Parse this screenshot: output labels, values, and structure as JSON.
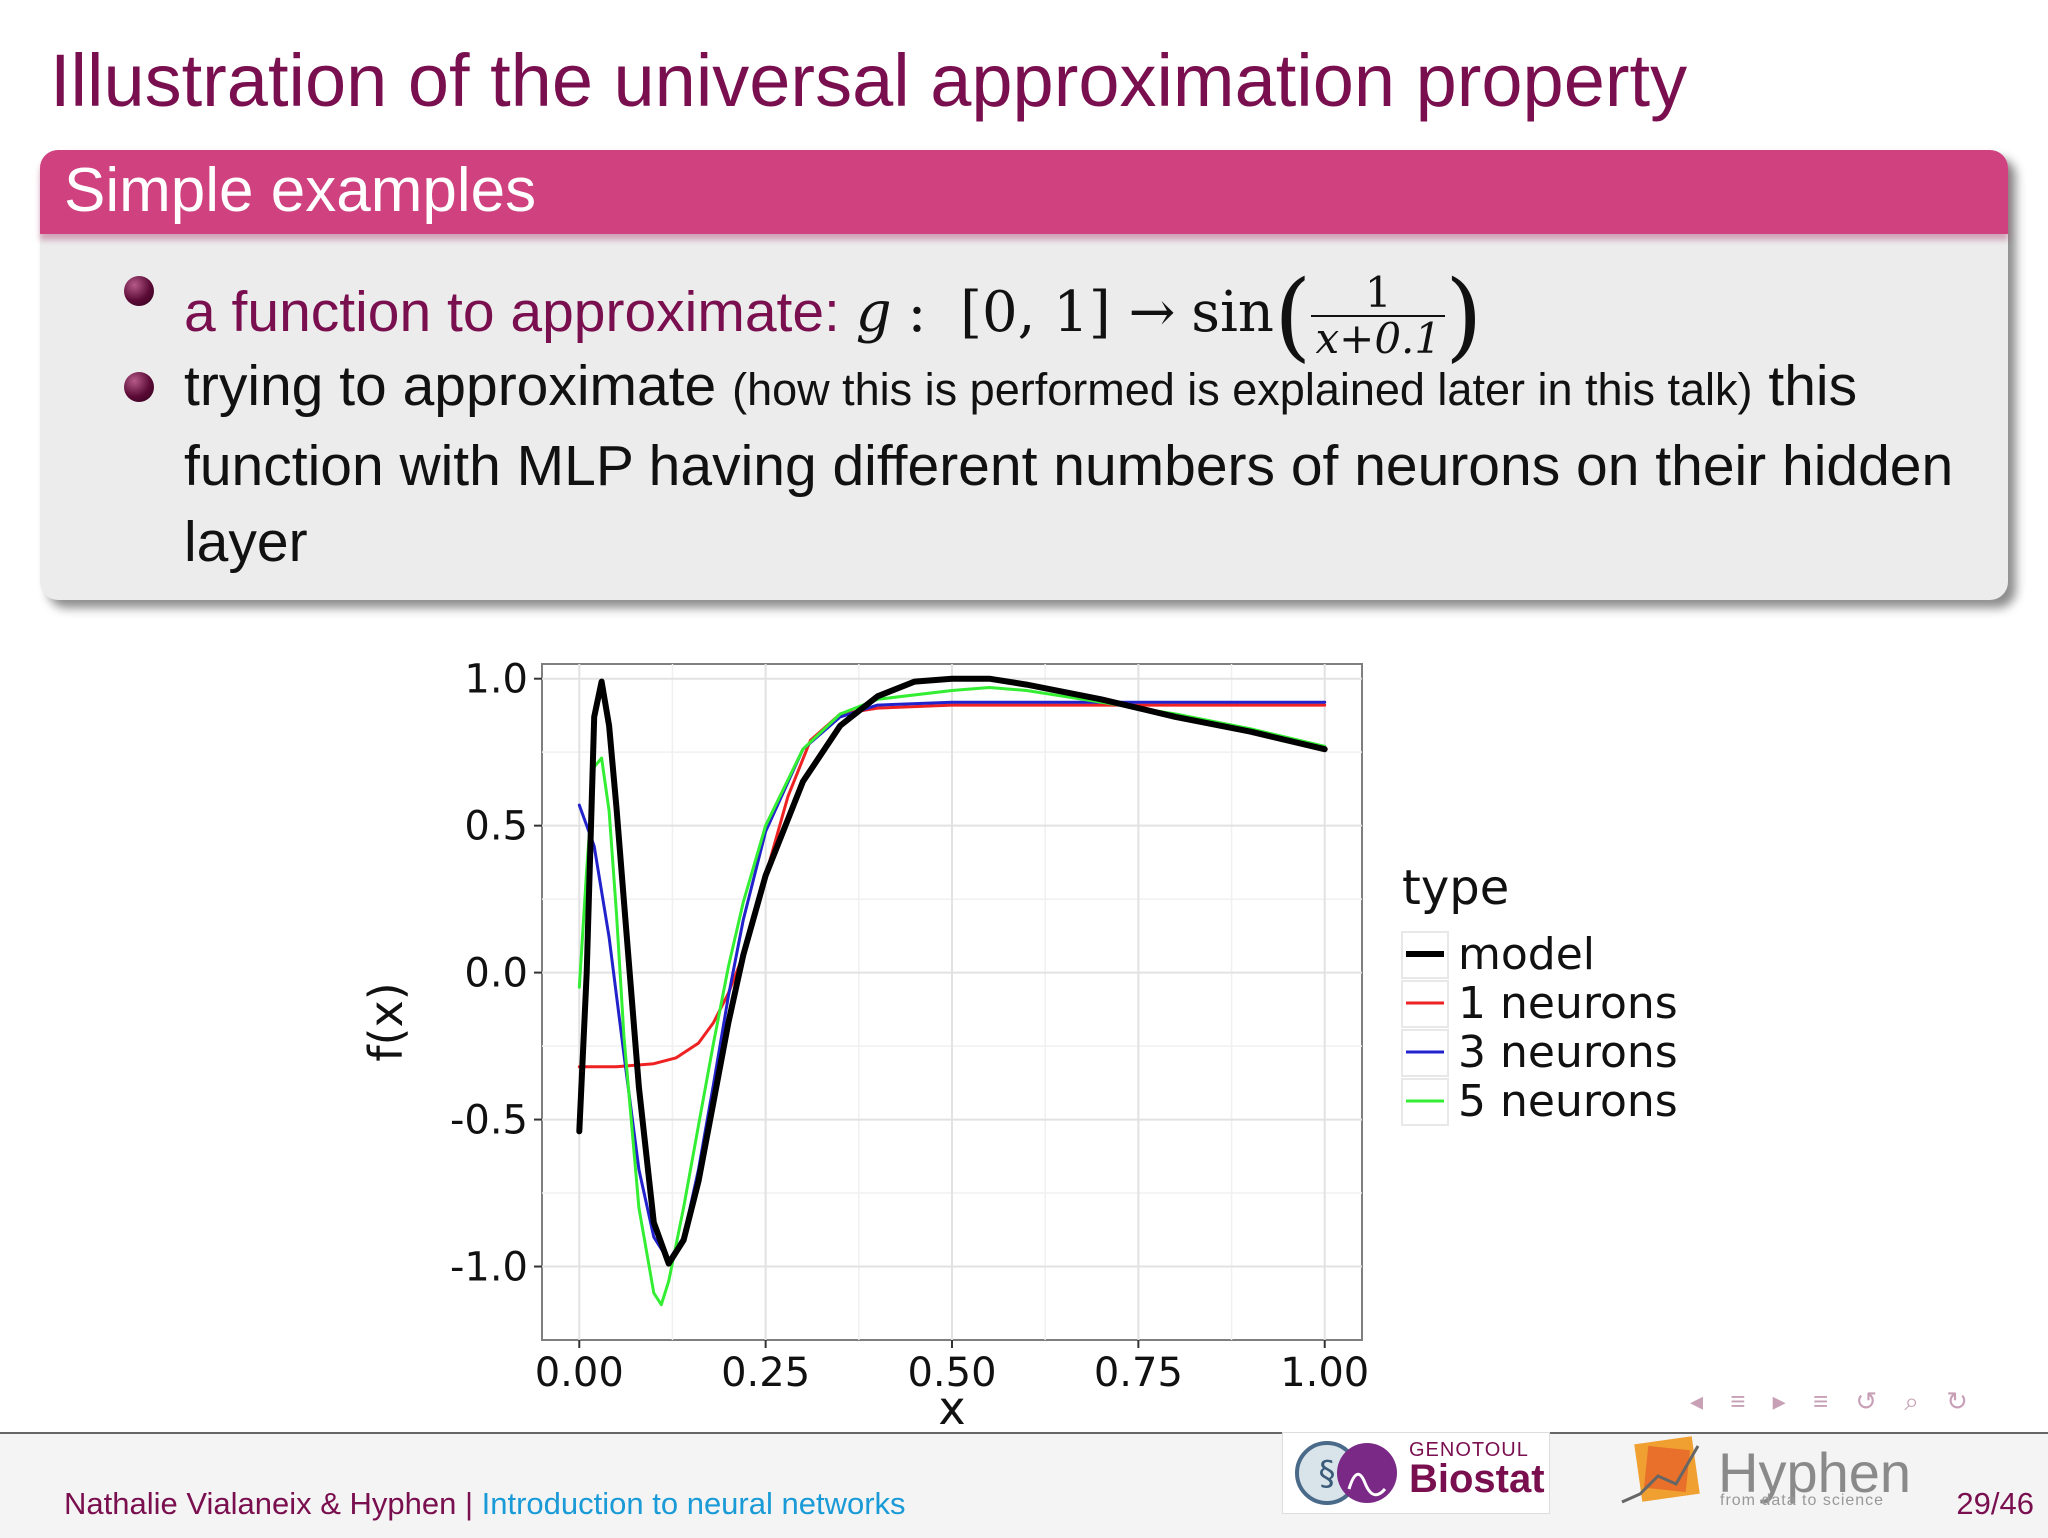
{
  "slide": {
    "title": "Illustration of the universal approximation property",
    "block_title": "Simple examples",
    "bullet1": {
      "label": "a function to approximate:",
      "g": "g",
      "colon": ":",
      "domain": "[0, 1] →",
      "sin": "sin",
      "frac_num": "1",
      "frac_den": "x+0.1",
      "paren_open": "(",
      "paren_close": ")"
    },
    "bullet2": {
      "part1": "trying to approximate",
      "small": "(how this is performed is explained later in this talk)",
      "part2": "this function with MLP having different numbers of neurons on their hidden layer"
    }
  },
  "chart_data": {
    "type": "line",
    "title": "",
    "xlabel": "x",
    "ylabel": "f(x)",
    "xlim": [
      -0.05,
      1.05
    ],
    "ylim": [
      -1.25,
      1.05
    ],
    "xticks": [
      "0.00",
      "0.25",
      "0.50",
      "0.75",
      "1.00"
    ],
    "xtick_values": [
      0,
      0.25,
      0.5,
      0.75,
      1.0
    ],
    "yticks": [
      "-1.0",
      "-0.5",
      "0.0",
      "0.5",
      "1.0"
    ],
    "ytick_values": [
      -1.0,
      -0.5,
      0.0,
      0.5,
      1.0
    ],
    "grid": true,
    "legend_title": "type",
    "legend_position": "right",
    "series": [
      {
        "name": "model",
        "color": "#000000",
        "x": [
          0.0,
          0.01,
          0.02,
          0.03,
          0.04,
          0.05,
          0.06,
          0.08,
          0.1,
          0.12,
          0.14,
          0.16,
          0.18,
          0.2,
          0.22,
          0.25,
          0.3,
          0.35,
          0.4,
          0.45,
          0.5,
          0.55,
          0.6,
          0.7,
          0.8,
          0.9,
          1.0
        ],
        "y": [
          -0.54,
          0.0,
          0.87,
          0.99,
          0.84,
          0.56,
          0.24,
          -0.39,
          -0.85,
          -0.99,
          -0.91,
          -0.71,
          -0.44,
          -0.17,
          0.06,
          0.33,
          0.65,
          0.84,
          0.94,
          0.99,
          1.0,
          1.0,
          0.98,
          0.93,
          0.87,
          0.82,
          0.76
        ]
      },
      {
        "name": "1 neurons",
        "color": "#ee2222",
        "x": [
          0.0,
          0.05,
          0.1,
          0.13,
          0.16,
          0.18,
          0.2,
          0.22,
          0.25,
          0.28,
          0.31,
          0.35,
          0.4,
          0.5,
          0.6,
          1.0
        ],
        "y": [
          -0.32,
          -0.32,
          -0.31,
          -0.29,
          -0.24,
          -0.17,
          -0.07,
          0.06,
          0.33,
          0.6,
          0.79,
          0.88,
          0.9,
          0.91,
          0.91,
          0.91
        ]
      },
      {
        "name": "3 neurons",
        "color": "#2222cc",
        "x": [
          0.0,
          0.02,
          0.04,
          0.06,
          0.08,
          0.1,
          0.12,
          0.14,
          0.16,
          0.18,
          0.2,
          0.22,
          0.25,
          0.3,
          0.35,
          0.4,
          0.5,
          0.6,
          1.0
        ],
        "y": [
          0.57,
          0.43,
          0.12,
          -0.28,
          -0.67,
          -0.9,
          -0.98,
          -0.9,
          -0.67,
          -0.38,
          -0.08,
          0.18,
          0.48,
          0.76,
          0.87,
          0.91,
          0.92,
          0.92,
          0.92
        ]
      },
      {
        "name": "5 neurons",
        "color": "#33ee33",
        "x": [
          0.0,
          0.01,
          0.02,
          0.03,
          0.04,
          0.05,
          0.06,
          0.08,
          0.1,
          0.11,
          0.12,
          0.14,
          0.16,
          0.18,
          0.2,
          0.22,
          0.25,
          0.3,
          0.35,
          0.4,
          0.5,
          0.55,
          0.6,
          0.7,
          0.8,
          0.9,
          1.0
        ],
        "y": [
          -0.05,
          0.35,
          0.7,
          0.73,
          0.55,
          0.2,
          -0.22,
          -0.8,
          -1.09,
          -1.13,
          -1.05,
          -0.8,
          -0.52,
          -0.24,
          0.02,
          0.24,
          0.5,
          0.76,
          0.88,
          0.93,
          0.96,
          0.97,
          0.96,
          0.92,
          0.88,
          0.83,
          0.77
        ]
      }
    ]
  },
  "footer": {
    "author": "Nathalie Vialaneix & Hyphen",
    "separator": " | ",
    "talk": "Introduction to neural networks",
    "page": "29/46"
  },
  "logos": {
    "biostat_small": "GENOTOUL",
    "biostat_big": "Biostat",
    "hyphen_big": "Hyphen",
    "hyphen_small": "from data to science"
  },
  "nav": {
    "symbols": "◂ ≡ ▸ ≡ ↺ ⌕ ↻"
  }
}
